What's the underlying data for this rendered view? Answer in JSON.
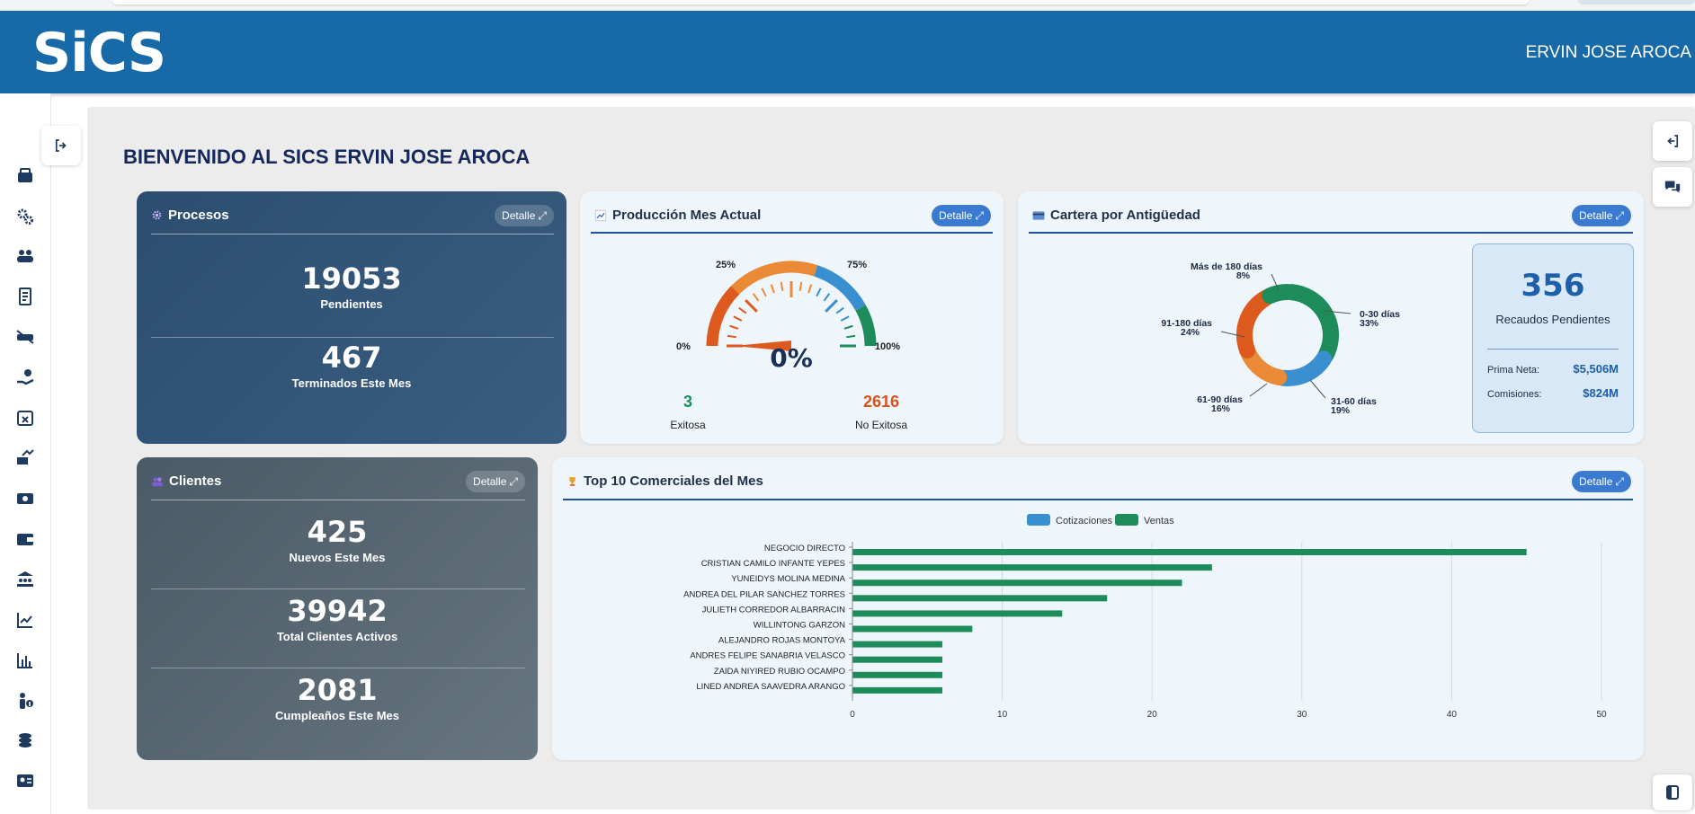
{
  "app": {
    "logo_text": "SiCS",
    "user_name": "ERVIN JOSE AROCA",
    "welcome": "BIENVENIDO AL SICS ERVIN JOSE AROCA"
  },
  "sidebar": {
    "icons": [
      "inbox-icon",
      "gears-icon",
      "users-icon",
      "receipt-icon",
      "car-off-icon",
      "hand-money-icon",
      "calendar-x-icon",
      "money-chart-icon",
      "cash-icon",
      "wallet-icon",
      "bank-users-icon",
      "line-chart-icon",
      "bar-chart-icon",
      "person-info-icon",
      "coins-icon",
      "id-card-icon"
    ]
  },
  "procesos": {
    "title": "Procesos",
    "detalle": "Detalle",
    "pendientes_value": "19053",
    "pendientes_label": "Pendientes",
    "terminados_value": "467",
    "terminados_label": "Terminados Este Mes"
  },
  "produccion": {
    "title": "Producción Mes Actual",
    "detalle": "Detalle",
    "gauge_value": "0%",
    "gauge_fraction": 0,
    "tick_labels": [
      "0%",
      "25%",
      "75%",
      "100%"
    ],
    "exitosa_value": "3",
    "exitosa_label": "Exitosa",
    "no_exitosa_value": "2616",
    "no_exitosa_label": "No Exitosa",
    "colors": {
      "exitosa": "#1e8b5a",
      "no_exitosa": "#d9531e"
    }
  },
  "cartera": {
    "title": "Cartera por Antigüedad",
    "detalle": "Detalle",
    "recaudos_value": "356",
    "recaudos_label": "Recaudos Pendientes",
    "prima_label": "Prima Neta:",
    "prima_value": "$5,506M",
    "comisiones_label": "Comisiones:",
    "comisiones_value": "$824M",
    "segments": [
      {
        "label": "0-30 días",
        "pct": "33%",
        "value": 33,
        "color": "#1e8b5a"
      },
      {
        "label": "31-60 días",
        "pct": "19%",
        "value": 19,
        "color": "#3a8fd0"
      },
      {
        "label": "61-90 días",
        "pct": "16%",
        "value": 16,
        "color": "#ea8a36"
      },
      {
        "label": "91-180 días",
        "pct": "24%",
        "value": 24,
        "color": "#dc5a1e"
      },
      {
        "label": "Más de 180 días",
        "pct": "8%",
        "value": 8,
        "color": "#1e8b5a"
      }
    ]
  },
  "clientes": {
    "title": "Clientes",
    "detalle": "Detalle",
    "nuevos_value": "425",
    "nuevos_label": "Nuevos Este Mes",
    "total_value": "39942",
    "total_label": "Total Clientes Activos",
    "cumple_value": "2081",
    "cumple_label": "Cumpleaños Este Mes"
  },
  "top10": {
    "title": "Top 10 Comerciales del Mes",
    "detalle": "Detalle"
  },
  "chart_data": {
    "type": "bar",
    "orientation": "horizontal",
    "title": "Top 10 Comerciales del Mes",
    "categories": [
      "NEGOCIO DIRECTO",
      "CRISTIAN CAMILO INFANTE YEPES",
      "YUNEIDYS MOLINA MEDINA",
      "ANDREA DEL PILAR SANCHEZ TORRES",
      "JULIETH CORREDOR ALBARRACIN",
      "WILLINTONG GARZON",
      "ALEJANDRO ROJAS MONTOYA",
      "ANDRES FELIPE SANABRIA VELASCO",
      "ZAIDA NIYIRED RUBIO OCAMPO",
      "LINED ANDREA  SAAVEDRA ARANGO"
    ],
    "series": [
      {
        "name": "Cotizaciones",
        "values": [
          0,
          0,
          0,
          0,
          0,
          0,
          0,
          0,
          0,
          0
        ],
        "color": "#3a8fd0"
      },
      {
        "name": "Ventas",
        "values": [
          45,
          24,
          22,
          17,
          14,
          8,
          6,
          6,
          6,
          6
        ],
        "color": "#1e8b5a"
      }
    ],
    "xlim": [
      0,
      50
    ],
    "xticks": [
      "0",
      "10",
      "20",
      "30",
      "40",
      "50"
    ],
    "grid": true,
    "legend": "top"
  }
}
